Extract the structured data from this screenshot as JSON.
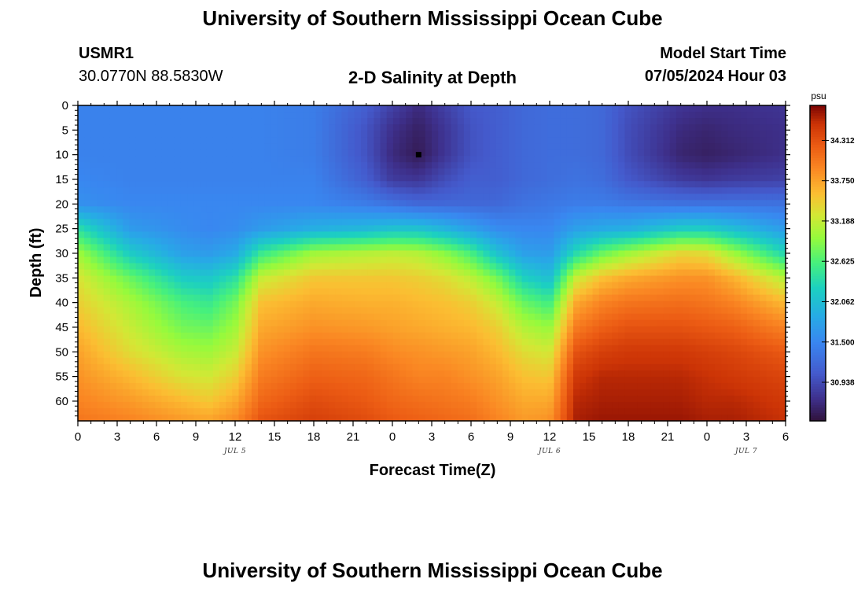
{
  "header": {
    "title": "University of Southern Mississippi Ocean Cube",
    "station_id": "USMR1",
    "station_coords": "30.0770N  88.5830W",
    "plot_title": "2-D Salinity at Depth",
    "model_start_label": "Model Start Time",
    "model_start_value": "07/05/2024 Hour 03"
  },
  "footer": {
    "title": "University of Southern Mississippi Ocean Cube"
  },
  "chart_data": {
    "type": "heatmap",
    "title": "2-D Salinity at Depth",
    "xlabel": "Forecast Time(Z)",
    "ylabel": "Depth (ft)",
    "x_range_hours": [
      0,
      54
    ],
    "y_range_ft": [
      0,
      64
    ],
    "y_inverted": true,
    "x_ticks": [
      {
        "hour": 0,
        "label": "0"
      },
      {
        "hour": 3,
        "label": "3"
      },
      {
        "hour": 6,
        "label": "6"
      },
      {
        "hour": 9,
        "label": "9"
      },
      {
        "hour": 12,
        "label": "12"
      },
      {
        "hour": 15,
        "label": "15"
      },
      {
        "hour": 18,
        "label": "18"
      },
      {
        "hour": 21,
        "label": "21"
      },
      {
        "hour": 24,
        "label": "0"
      },
      {
        "hour": 27,
        "label": "3"
      },
      {
        "hour": 30,
        "label": "6"
      },
      {
        "hour": 33,
        "label": "9"
      },
      {
        "hour": 36,
        "label": "12"
      },
      {
        "hour": 39,
        "label": "15"
      },
      {
        "hour": 42,
        "label": "18"
      },
      {
        "hour": 45,
        "label": "21"
      },
      {
        "hour": 48,
        "label": "0"
      },
      {
        "hour": 51,
        "label": "3"
      },
      {
        "hour": 54,
        "label": "6"
      }
    ],
    "y_ticks": [
      0,
      5,
      10,
      15,
      20,
      25,
      30,
      35,
      40,
      45,
      50,
      55,
      60
    ],
    "date_labels": [
      {
        "hour": 12,
        "label": "JUL 5"
      },
      {
        "hour": 36,
        "label": "JUL 6"
      },
      {
        "hour": 51,
        "label": "JUL 7"
      }
    ],
    "colorbar": {
      "unit": "psu",
      "min": 30.4,
      "max": 34.8,
      "ticks": [
        30.938,
        31.5,
        32.062,
        32.625,
        33.188,
        33.75,
        34.312
      ],
      "tick_labels": [
        "30.938",
        "31.500",
        "32.062",
        "32.625",
        "33.188",
        "33.750",
        "34.312"
      ]
    },
    "marker": {
      "hour": 26,
      "depth": 10
    },
    "profile_hours": [
      0,
      4,
      8,
      10,
      12,
      14,
      18,
      22,
      24,
      26,
      28,
      30,
      32,
      34,
      36,
      38,
      40,
      42,
      46,
      48,
      50,
      54
    ],
    "profile_depths": [
      0,
      5,
      10,
      15,
      20,
      25,
      30,
      35,
      40,
      45,
      50,
      55,
      60,
      64
    ],
    "salinity_profiles": [
      [
        31.45,
        31.45,
        31.45,
        31.5,
        31.6,
        32.4,
        33.0,
        33.3,
        33.45,
        33.6,
        33.75,
        33.85,
        33.95,
        34.05
      ],
      [
        31.45,
        31.45,
        31.45,
        31.45,
        31.5,
        31.7,
        32.2,
        32.75,
        33.05,
        33.2,
        33.35,
        33.6,
        33.8,
        33.95
      ],
      [
        31.45,
        31.45,
        31.45,
        31.45,
        31.5,
        31.55,
        31.75,
        32.2,
        32.6,
        32.8,
        33.05,
        33.3,
        33.6,
        33.8
      ],
      [
        31.45,
        31.45,
        31.45,
        31.45,
        31.5,
        31.5,
        31.7,
        32.15,
        32.5,
        32.75,
        33.0,
        33.25,
        33.5,
        33.75
      ],
      [
        31.45,
        31.45,
        31.45,
        31.45,
        31.5,
        31.55,
        31.85,
        32.4,
        32.8,
        33.0,
        33.2,
        33.45,
        33.7,
        33.9
      ],
      [
        31.45,
        31.45,
        31.45,
        31.45,
        31.5,
        31.7,
        32.5,
        33.2,
        33.55,
        33.7,
        33.85,
        34.0,
        34.15,
        34.3
      ],
      [
        31.4,
        31.4,
        31.4,
        31.45,
        31.5,
        31.9,
        33.0,
        33.5,
        33.7,
        33.85,
        34.05,
        34.2,
        34.35,
        34.45
      ],
      [
        31.1,
        31.0,
        31.0,
        31.1,
        31.4,
        32.0,
        33.1,
        33.5,
        33.65,
        33.8,
        34.0,
        34.15,
        34.25,
        34.35
      ],
      [
        30.85,
        30.7,
        30.65,
        30.8,
        31.3,
        32.1,
        33.15,
        33.5,
        33.65,
        33.75,
        33.9,
        34.05,
        34.15,
        34.25
      ],
      [
        30.65,
        30.55,
        30.5,
        30.75,
        31.2,
        32.1,
        33.1,
        33.45,
        33.6,
        33.7,
        33.85,
        33.95,
        34.1,
        34.2
      ],
      [
        30.85,
        30.75,
        30.75,
        30.95,
        31.2,
        31.95,
        32.9,
        33.35,
        33.55,
        33.65,
        33.8,
        33.95,
        34.05,
        34.15
      ],
      [
        31.05,
        31.0,
        31.0,
        31.1,
        31.2,
        31.75,
        32.6,
        33.15,
        33.45,
        33.6,
        33.75,
        33.85,
        34.0,
        34.1
      ],
      [
        31.1,
        31.1,
        31.1,
        31.1,
        31.2,
        31.55,
        32.1,
        32.8,
        33.2,
        33.45,
        33.6,
        33.75,
        33.85,
        33.95
      ],
      [
        31.2,
        31.2,
        31.2,
        31.2,
        31.3,
        31.5,
        31.75,
        32.25,
        32.75,
        33.1,
        33.35,
        33.55,
        33.7,
        33.8
      ],
      [
        31.25,
        31.25,
        31.25,
        31.25,
        31.35,
        31.5,
        31.7,
        32.05,
        32.55,
        32.95,
        33.25,
        33.5,
        33.7,
        33.85
      ],
      [
        31.25,
        31.25,
        31.25,
        31.3,
        31.4,
        31.75,
        32.35,
        33.2,
        33.7,
        34.0,
        34.3,
        34.5,
        34.6,
        34.65
      ],
      [
        31.2,
        31.2,
        31.2,
        31.25,
        31.4,
        31.85,
        32.75,
        33.55,
        33.95,
        34.2,
        34.45,
        34.6,
        34.65,
        34.7
      ],
      [
        31.0,
        30.95,
        30.95,
        31.05,
        31.35,
        31.9,
        33.0,
        33.7,
        34.05,
        34.3,
        34.5,
        34.6,
        34.65,
        34.7
      ],
      [
        30.75,
        30.65,
        30.6,
        30.8,
        31.3,
        32.2,
        33.4,
        33.85,
        34.1,
        34.3,
        34.5,
        34.6,
        34.65,
        34.7
      ],
      [
        30.7,
        30.6,
        30.55,
        30.75,
        31.3,
        32.2,
        33.35,
        33.85,
        34.05,
        34.25,
        34.45,
        34.55,
        34.6,
        34.65
      ],
      [
        30.7,
        30.65,
        30.6,
        30.8,
        31.3,
        32.05,
        33.0,
        33.65,
        33.95,
        34.2,
        34.4,
        34.5,
        34.6,
        34.65
      ],
      [
        30.75,
        30.7,
        30.7,
        30.85,
        31.3,
        31.7,
        32.3,
        33.1,
        33.6,
        33.95,
        34.25,
        34.4,
        34.5,
        34.55
      ]
    ]
  }
}
